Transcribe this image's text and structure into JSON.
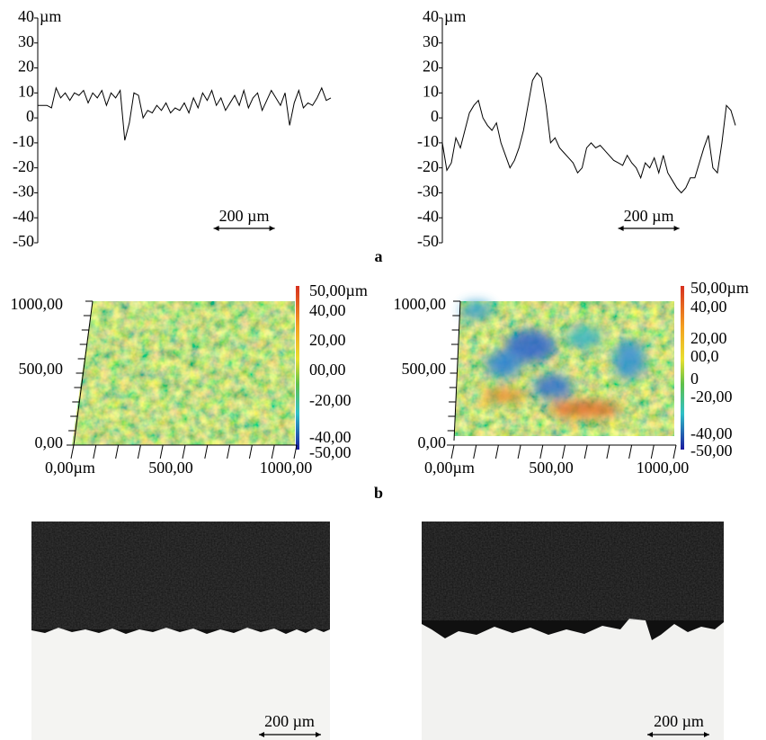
{
  "chart_data": [
    {
      "type": "line",
      "y_unit": "µm",
      "color": "#000000",
      "scale_bar": "200 µm",
      "ylim": [
        -50,
        40
      ],
      "yticks": [
        -50,
        -40,
        -30,
        -20,
        -10,
        0,
        10,
        20,
        30,
        40
      ],
      "xlim": [
        0,
        960
      ],
      "x": [
        0,
        15,
        30,
        45,
        60,
        75,
        90,
        105,
        120,
        135,
        150,
        165,
        180,
        195,
        210,
        225,
        240,
        255,
        270,
        285,
        300,
        315,
        330,
        345,
        360,
        375,
        390,
        405,
        420,
        435,
        450,
        465,
        480,
        495,
        510,
        525,
        540,
        555,
        570,
        585,
        600,
        615,
        630,
        645,
        660,
        675,
        690,
        705,
        720,
        735,
        750,
        765,
        780,
        795,
        810,
        825,
        840,
        855,
        870,
        885,
        900,
        915,
        930,
        945,
        960
      ],
      "values": [
        5,
        5,
        5,
        4,
        12,
        8,
        10,
        7,
        10,
        9,
        11,
        6,
        10,
        8,
        11,
        5,
        10,
        8,
        11,
        -9,
        -2,
        10,
        9,
        0,
        3,
        2,
        5,
        3,
        6,
        2,
        4,
        3,
        6,
        2,
        8,
        4,
        10,
        7,
        11,
        5,
        8,
        3,
        6,
        9,
        5,
        11,
        4,
        8,
        10,
        3,
        7,
        11,
        8,
        5,
        10,
        -3,
        6,
        11,
        4,
        6,
        5,
        8,
        12,
        7,
        8
      ]
    },
    {
      "type": "line",
      "y_unit": "µm",
      "color": "#000000",
      "scale_bar": "200 µm",
      "ylim": [
        -50,
        40
      ],
      "yticks": [
        -50,
        -40,
        -30,
        -20,
        -10,
        0,
        10,
        20,
        30,
        40
      ],
      "xlim": [
        0,
        975
      ],
      "x": [
        0,
        15,
        30,
        45,
        60,
        75,
        90,
        105,
        120,
        135,
        150,
        165,
        180,
        195,
        210,
        225,
        240,
        255,
        270,
        285,
        300,
        315,
        330,
        345,
        360,
        375,
        390,
        405,
        420,
        435,
        450,
        465,
        480,
        495,
        510,
        525,
        540,
        555,
        570,
        585,
        600,
        615,
        630,
        645,
        660,
        675,
        690,
        705,
        720,
        735,
        750,
        765,
        780,
        795,
        810,
        825,
        840,
        855,
        870,
        885,
        900,
        915,
        930,
        945,
        960,
        975
      ],
      "values": [
        -10,
        -21,
        -18,
        -8,
        -12,
        -5,
        2,
        5,
        7,
        0,
        -3,
        -5,
        -2,
        -10,
        -15,
        -20,
        -17,
        -12,
        -5,
        5,
        15,
        18,
        16,
        5,
        -10,
        -8,
        -12,
        -14,
        -16,
        -18,
        -22,
        -20,
        -12,
        -10,
        -12,
        -11,
        -13,
        -15,
        -17,
        -18,
        -19,
        -15,
        -18,
        -20,
        -24,
        -18,
        -20,
        -16,
        -22,
        -15,
        -22,
        -25,
        -28,
        -30,
        -28,
        -24,
        -24,
        -18,
        -12,
        -7,
        -20,
        -22,
        -10,
        5,
        3,
        -3
      ]
    }
  ],
  "panel_labels": [
    "a",
    "b"
  ],
  "surface_maps": [
    {
      "y_tick_labels": [
        "1000,00",
        "500,00",
        "0,00"
      ],
      "x_tick_labels": [
        "0,00µm",
        "500,00",
        "1000,00"
      ],
      "colorbar_labels": [
        "50,00µm",
        "40,00",
        "20,00",
        "00,00",
        "-20,00",
        "-40,00",
        "-50,00"
      ]
    },
    {
      "y_tick_labels": [
        "1000,00",
        "500,00",
        "0,00"
      ],
      "x_tick_labels": [
        "0,00µm",
        "500,00",
        "1000,00"
      ],
      "colorbar_labels": [
        "50,00µm",
        "40,00",
        "20,00",
        "00,0",
        "0",
        "-20,00",
        "-40,00",
        "-50,00"
      ]
    }
  ],
  "micrographs": [
    {
      "scale_bar": "200 µm"
    },
    {
      "scale_bar": "200 µm"
    }
  ]
}
